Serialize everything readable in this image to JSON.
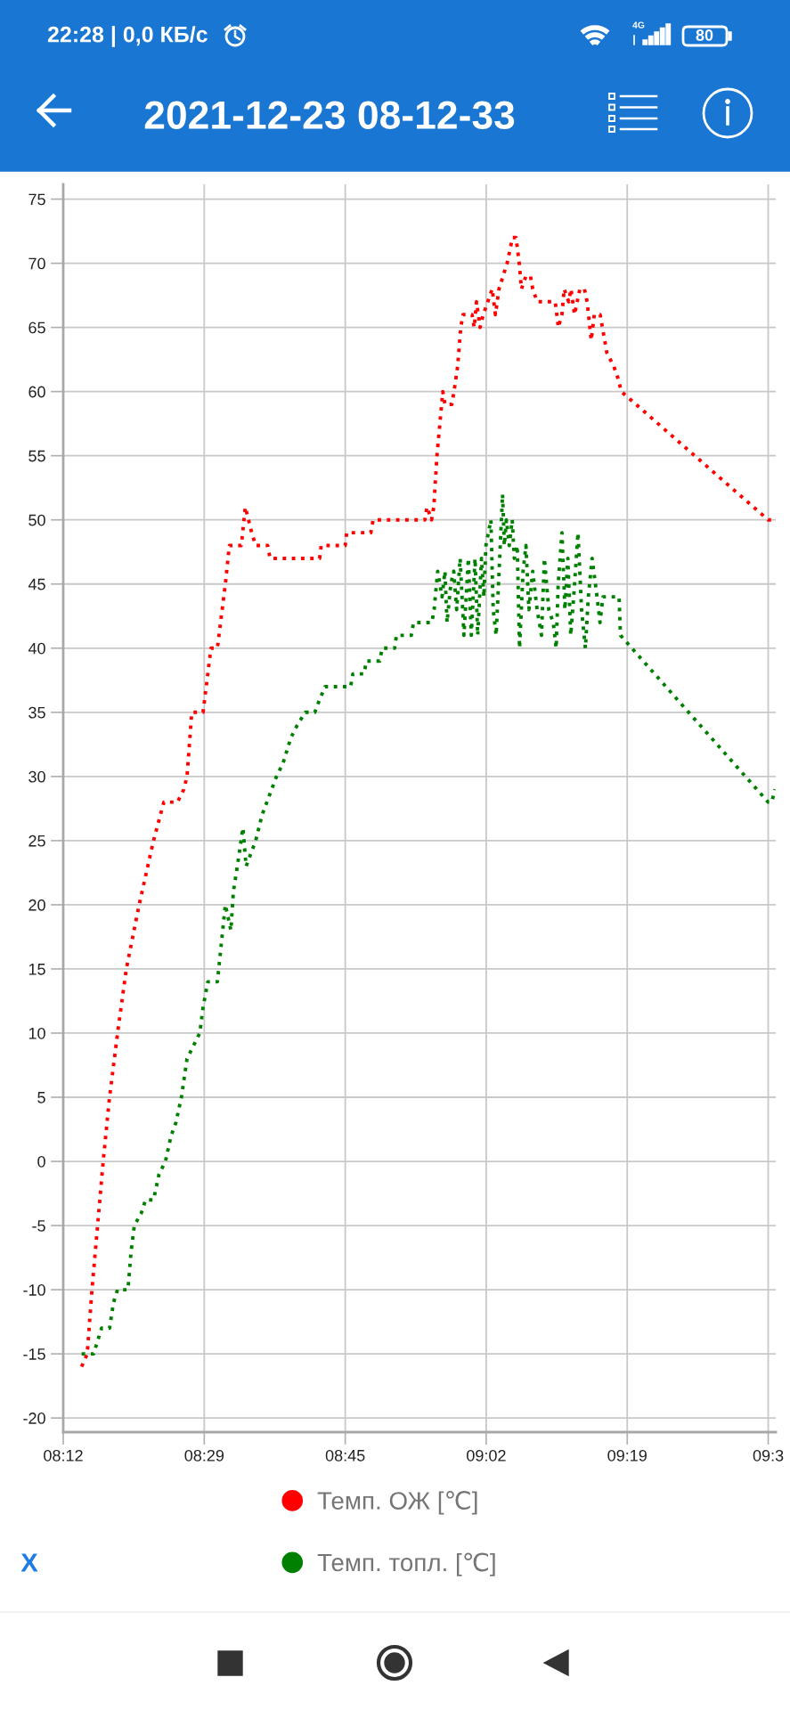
{
  "chart_data": {
    "type": "line",
    "title": "2021-12-23 08-12-33",
    "annotations": [
      "22:28 | 0,0 КБ/с",
      "4G",
      "80",
      "X"
    ],
    "xlim": [
      8.1979,
      9.6087
    ],
    "ylim": [
      -21.1,
      76.15
    ],
    "xticks": [
      {
        "value": 8.1979,
        "label": "08:12"
      },
      {
        "value": 8.4771,
        "label": "08:29"
      },
      {
        "value": 8.7563,
        "label": "08:45"
      },
      {
        "value": 9.0354,
        "label": "09:02"
      },
      {
        "value": 9.3146,
        "label": "09:19"
      },
      {
        "value": 9.5938,
        "label": "09:3"
      }
    ],
    "yticks": [
      -20,
      -15,
      -10,
      -5,
      0,
      5,
      10,
      15,
      20,
      25,
      30,
      35,
      40,
      45,
      50,
      55,
      60,
      65,
      70,
      75
    ],
    "grid": true,
    "legend": "bottom",
    "line_style": "dotted",
    "series": [
      {
        "name": "Темп. ОЖ [℃]",
        "color": "#ff0000",
        "x": [
          8.2343,
          8.2454,
          8.2548,
          8.2659,
          8.277,
          8.2896,
          8.3055,
          8.3228,
          8.3482,
          8.3766,
          8.3971,
          8.424,
          8.4367,
          8.443,
          8.4524,
          8.4747,
          8.4904,
          8.5031,
          8.5189,
          8.5268,
          8.5505,
          8.5584,
          8.5711,
          8.579,
          8.6027,
          8.6075,
          8.7055,
          8.7087,
          8.7562,
          8.7592,
          8.807,
          8.8115,
          8.9139,
          8.9182,
          8.9272,
          8.9316,
          8.9379,
          8.9494,
          8.9538,
          8.9672,
          8.9717,
          8.9789,
          8.985,
          8.9895,
          9.0073,
          9.0117,
          9.0162,
          9.0233,
          9.0295,
          9.0385,
          9.0473,
          9.0536,
          9.0607,
          9.0768,
          9.0874,
          9.0945,
          9.1008,
          9.1052,
          9.1141,
          9.123,
          9.1275,
          9.1364,
          9.172,
          9.1783,
          9.1853,
          9.1898,
          9.1987,
          9.2032,
          9.2103,
          9.2209,
          9.2298,
          9.2352,
          9.2433,
          9.2494,
          9.261,
          9.2744,
          9.2877,
          9.2966,
          9.3029,
          9.5937,
          9.6072
        ],
        "values": [
          -16,
          -15,
          -10,
          -5,
          0,
          5,
          10,
          15,
          20,
          25,
          28,
          28,
          29,
          30,
          35,
          35,
          40,
          40,
          45,
          48,
          48,
          51,
          49,
          48,
          48,
          47,
          47,
          48,
          48,
          49,
          49,
          50,
          50,
          51,
          50,
          51,
          55,
          60,
          59,
          59,
          60,
          62,
          65,
          66,
          66,
          65,
          67,
          65,
          66,
          67,
          68,
          66,
          68,
          70,
          72,
          72,
          70,
          68,
          69,
          69,
          68,
          67,
          67,
          65,
          66,
          68,
          67,
          68,
          66,
          68,
          68,
          67,
          64,
          66,
          66,
          63,
          62,
          61,
          60,
          50,
          50
        ]
      },
      {
        "name": "Темп. топл. [℃]",
        "color": "#008000",
        "x": [
          8.2343,
          8.258,
          8.2659,
          8.2738,
          8.2896,
          8.2975,
          8.3054,
          8.326,
          8.3323,
          8.3387,
          8.3528,
          8.3608,
          8.3766,
          8.3876,
          8.4003,
          8.4114,
          8.4208,
          8.4319,
          8.443,
          8.4556,
          8.4683,
          8.4747,
          8.4841,
          8.5031,
          8.511,
          8.5189,
          8.5299,
          8.5347,
          8.5426,
          8.5537,
          8.56,
          8.5695,
          8.579,
          8.5916,
          8.6011,
          8.6201,
          8.6328,
          8.6485,
          8.6612,
          8.6771,
          8.696,
          8.7055,
          8.7165,
          8.7669,
          8.7714,
          8.7936,
          8.7981,
          8.8248,
          8.8292,
          8.8541,
          8.8577,
          8.8871,
          8.8915,
          8.9276,
          8.9323,
          8.9393,
          8.9479,
          8.9537,
          8.9578,
          8.9653,
          8.9711,
          8.9769,
          8.9838,
          8.9913,
          9.0001,
          9.0059,
          9.0133,
          9.0186,
          9.0261,
          9.0308,
          9.0348,
          9.0447,
          9.0492,
          9.0551,
          9.0609,
          9.0678,
          9.0713,
          9.0754,
          9.0811,
          9.0869,
          9.091,
          9.0968,
          9.1014,
          9.1084,
          9.1141,
          9.1199,
          9.1275,
          9.1362,
          9.1449,
          9.1506,
          9.1593,
          9.1681,
          9.1739,
          9.1779,
          9.1854,
          9.1912,
          9.197,
          9.2028,
          9.2086,
          9.2172,
          9.2242,
          9.2318,
          9.2376,
          9.2451,
          9.2549,
          9.2607,
          9.2665,
          9.2984,
          9.3013,
          9.5937,
          9.6007,
          9.6072
        ],
        "values": [
          -15,
          -15,
          -14,
          -13,
          -13,
          -11,
          -10,
          -10,
          -7,
          -5,
          -4,
          -3,
          -3,
          -1,
          0,
          2,
          3,
          5,
          8,
          9,
          10,
          12,
          14,
          14,
          17,
          20,
          18,
          21,
          23,
          26,
          23,
          24,
          25,
          27,
          28,
          30,
          31,
          33,
          34,
          35,
          35,
          36,
          37,
          37,
          38,
          38,
          39,
          39,
          40,
          40,
          41,
          41,
          42,
          42,
          43,
          46,
          44,
          46,
          42,
          45,
          46,
          43,
          47,
          41,
          47,
          41,
          47,
          41,
          47,
          44,
          48,
          50,
          43,
          41,
          46,
          52,
          48,
          50,
          48,
          50,
          47,
          48,
          40,
          46,
          48,
          43,
          46,
          43,
          41,
          47,
          43,
          42,
          40,
          45,
          49,
          43,
          47,
          41,
          44,
          49,
          43,
          40,
          44,
          47,
          44,
          42,
          44,
          44,
          41,
          28,
          28,
          29
        ]
      }
    ]
  }
}
